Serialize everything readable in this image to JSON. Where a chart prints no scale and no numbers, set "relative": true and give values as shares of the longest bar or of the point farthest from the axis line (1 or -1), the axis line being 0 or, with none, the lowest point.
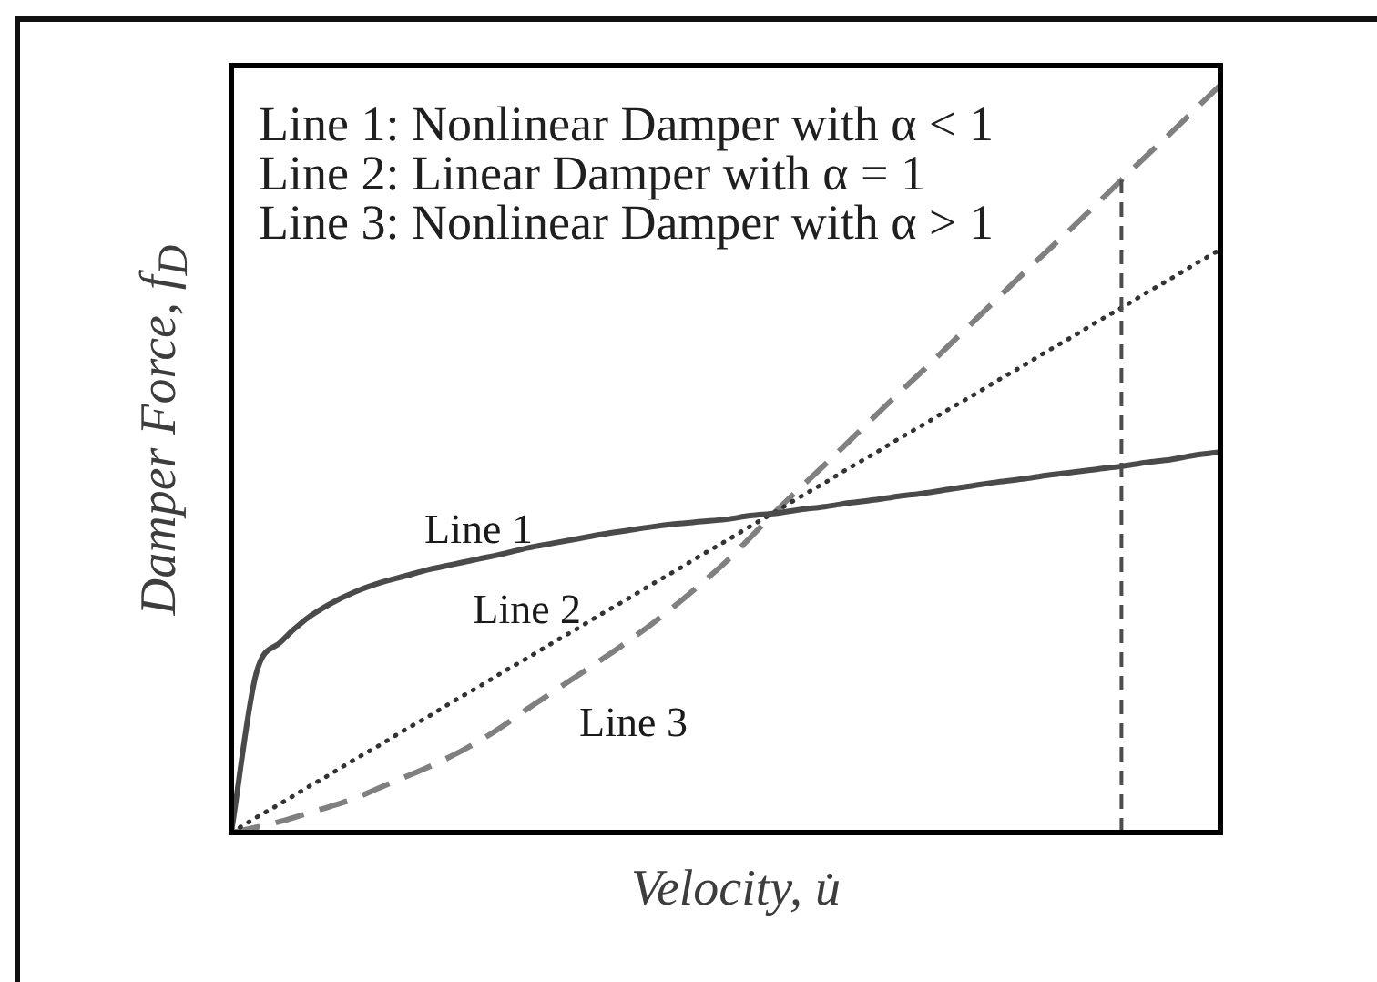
{
  "chart_data": {
    "type": "line",
    "relative": true,
    "xlabel": "Velocity, u̇",
    "ylabel": "Damper Force, f$_{D}$",
    "annotations": [
      "Line 1: Nonlinear Damper with α < 1",
      "Line 2: Linear Damper with α = 1",
      "Line 3: Nonlinear Damper with α > 1"
    ],
    "categories": [
      null,
      null,
      null,
      null,
      null,
      null,
      null,
      null,
      null,
      null,
      null,
      null,
      null,
      null,
      null,
      null,
      null,
      null,
      null,
      null,
      null,
      null,
      null,
      null,
      null,
      null,
      null,
      null,
      null,
      null,
      null,
      null,
      null,
      null,
      null,
      null,
      null,
      null,
      null,
      null,
      null
    ],
    "series": [
      {
        "name": "Line 1",
        "color": "#4a4a4a",
        "line_style": "solid",
        "values": [
          0,
          0.212,
          0.255,
          0.285,
          0.306,
          0.322,
          0.334,
          0.343,
          0.352,
          0.359,
          0.366,
          0.373,
          0.381,
          0.387,
          0.393,
          0.399,
          0.404,
          0.409,
          0.413,
          0.416,
          0.419,
          0.424,
          0.427,
          0.432,
          0.436,
          0.441,
          0.445,
          0.45,
          0.454,
          0.459,
          0.464,
          0.469,
          0.473,
          0.478,
          0.482,
          0.486,
          0.49,
          0.495,
          0.499,
          0.505,
          0.509
        ]
      },
      {
        "name": "Line 2",
        "color": "#333333",
        "line_style": "dotted",
        "values": [
          0,
          0.02,
          0.039,
          0.059,
          0.078,
          0.098,
          0.117,
          0.137,
          0.156,
          0.176,
          0.195,
          0.215,
          0.234,
          0.254,
          0.273,
          0.293,
          0.312,
          0.332,
          0.351,
          0.371,
          0.39,
          0.41,
          0.429,
          0.449,
          0.468,
          0.488,
          0.507,
          0.527,
          0.546,
          0.566,
          0.585,
          0.605,
          0.624,
          0.644,
          0.663,
          0.683,
          0.702,
          0.722,
          0.741,
          0.761,
          0.78
        ]
      },
      {
        "name": "Line 3",
        "color": "#808080",
        "line_style": "dashed",
        "values": [
          0,
          0.007,
          0.015,
          0.025,
          0.035,
          0.046,
          0.06,
          0.074,
          0.088,
          0.104,
          0.122,
          0.143,
          0.166,
          0.188,
          0.21,
          0.232,
          0.255,
          0.279,
          0.305,
          0.333,
          0.362,
          0.395,
          0.429,
          0.461,
          0.492,
          0.524,
          0.556,
          0.588,
          0.619,
          0.651,
          0.683,
          0.715,
          0.747,
          0.778,
          0.809,
          0.841,
          0.873,
          0.905,
          0.936,
          0.968,
          1
        ]
      }
    ]
  }
}
